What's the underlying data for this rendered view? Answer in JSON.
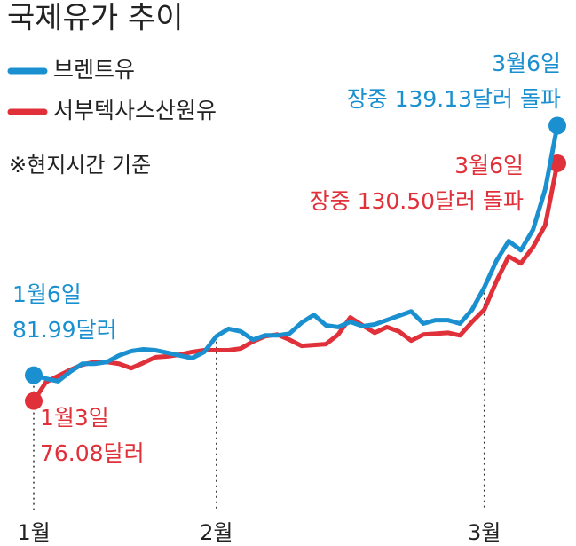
{
  "chart_data": {
    "type": "line",
    "title": "국제유가 추이",
    "note": "※현지시간 기준",
    "categories": [
      "1월",
      null,
      null,
      null,
      null,
      null,
      null,
      null,
      null,
      null,
      null,
      null,
      null,
      null,
      null,
      "2월",
      null,
      null,
      null,
      null,
      null,
      null,
      null,
      null,
      null,
      null,
      null,
      null,
      null,
      null,
      null,
      null,
      null,
      null,
      null,
      null,
      null,
      "3월",
      null,
      null,
      null,
      null,
      null,
      null
    ],
    "series": [
      {
        "name": "브렌트유",
        "color": "#1a90d0",
        "values": [
          81.99,
          81.2,
          80.6,
          82.8,
          84.6,
          84.6,
          85.0,
          86.5,
          87.5,
          87.9,
          87.7,
          87.1,
          86.5,
          85.9,
          87.3,
          90.9,
          92.6,
          92.0,
          90.1,
          91.1,
          91.1,
          91.5,
          94.0,
          95.8,
          93.4,
          93.0,
          94.2,
          93.2,
          93.6,
          94.6,
          95.6,
          96.6,
          93.8,
          94.6,
          94.6,
          93.8,
          97.0,
          102.1,
          108.2,
          112.7,
          110.6,
          115.3,
          124.5,
          139.13
        ]
      },
      {
        "name": "서부텍사스산원유",
        "color": "#e0303a",
        "values": [
          76.08,
          80.4,
          81.8,
          83.2,
          84.4,
          85.0,
          85.0,
          84.6,
          83.6,
          84.8,
          86.1,
          86.3,
          86.7,
          87.3,
          87.7,
          87.7,
          87.7,
          88.1,
          89.7,
          90.9,
          91.3,
          90.1,
          88.7,
          88.9,
          89.1,
          91.3,
          95.2,
          93.4,
          91.7,
          93.0,
          92.0,
          89.9,
          91.3,
          91.5,
          91.7,
          91.1,
          94.2,
          97.0,
          103.5,
          109.2,
          107.6,
          111.3,
          116.3,
          130.5
        ]
      }
    ],
    "ylim": [
      50,
      150
    ],
    "annotations": [
      {
        "lines": [
          "1월6일",
          "81.99달러"
        ],
        "color": "#1a90d0"
      },
      {
        "lines": [
          "1월3일",
          "76.08달러"
        ],
        "color": "#e0303a"
      },
      {
        "lines": [
          "3월6일",
          "장중 139.13달러 돌파"
        ],
        "color": "#1a90d0"
      },
      {
        "lines": [
          "3월6일",
          "장중 130.50달러 돌파"
        ],
        "color": "#e0303a"
      }
    ]
  }
}
